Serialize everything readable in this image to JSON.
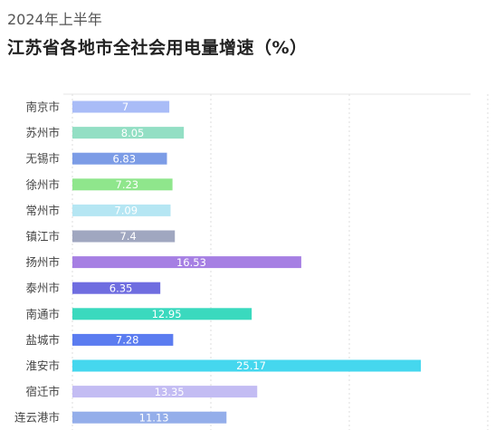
{
  "header": {
    "subtitle": "2024年上半年",
    "title": "江苏省各地市全社会用电量增速（%）"
  },
  "chart_data": {
    "type": "bar",
    "orientation": "horizontal",
    "title": "江苏省各地市全社会用电量增速（%）",
    "subtitle": "2024年上半年",
    "categories": [
      "南京市",
      "苏州市",
      "无锡市",
      "徐州市",
      "常州市",
      "镇江市",
      "扬州市",
      "泰州市",
      "南通市",
      "盐城市",
      "淮安市",
      "宿迁市",
      "连云港市"
    ],
    "values": [
      7,
      8.05,
      6.83,
      7.23,
      7.09,
      7.4,
      16.53,
      6.35,
      12.95,
      7.28,
      25.17,
      13.35,
      11.13
    ],
    "value_labels": [
      "7",
      "8.05",
      "6.83",
      "7.23",
      "7.09",
      "7.4",
      "16.53",
      "6.35",
      "12.95",
      "7.28",
      "25.17",
      "13.35",
      "11.13"
    ],
    "xlim": [
      0,
      30
    ],
    "grid": true,
    "colors": [
      "#A9BCF7",
      "#93DFC4",
      "#7C9CE6",
      "#8FE68C",
      "#B5E6F3",
      "#A0A7C0",
      "#A67FE3",
      "#6F6DE0",
      "#3AD9BE",
      "#5B7CF0",
      "#45D7EE",
      "#C3BCF3",
      "#94AEEA"
    ]
  }
}
